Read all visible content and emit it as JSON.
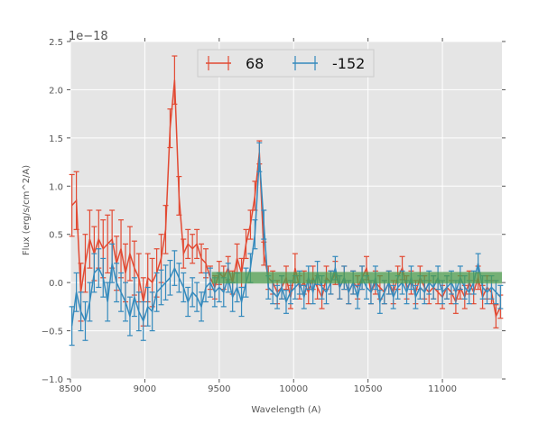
{
  "chart_data": {
    "type": "line",
    "subtype": "errorbar",
    "title": "",
    "xlabel": "Wavelength (A)",
    "ylabel": "Flux (erg/s/cm^2/A)",
    "y_offset_text": "1e−18",
    "xlim": [
      8500,
      11400
    ],
    "ylim": [
      -1.0,
      2.5
    ],
    "xticks": [
      8500,
      9000,
      9500,
      10000,
      10500,
      11000
    ],
    "xtick_labels": [
      "8500",
      "9000",
      "9500",
      "10000",
      "10500",
      "11000"
    ],
    "yticks": [
      -1.0,
      -0.5,
      0.0,
      0.5,
      1.0,
      1.5,
      2.0,
      2.5
    ],
    "ytick_labels": [
      "−1.0",
      "−0.5",
      "0.0",
      "0.5",
      "1.0",
      "1.5",
      "2.0",
      "2.5"
    ],
    "grid": true,
    "legend_position": "top-center",
    "band": {
      "x": [
        9450,
        11400
      ],
      "y": [
        -0.01,
        0.11
      ],
      "color": "#4f9e4f"
    },
    "x_start": 8510,
    "x_step": 30,
    "series": [
      {
        "name": "68",
        "color": "#E24A33",
        "y": [
          0.8,
          0.85,
          -0.1,
          0.2,
          0.45,
          0.3,
          0.45,
          0.35,
          0.4,
          0.45,
          0.2,
          0.35,
          0.1,
          0.3,
          0.15,
          0.05,
          -0.2,
          0.05,
          0.0,
          0.1,
          0.25,
          0.55,
          1.6,
          2.1,
          0.9,
          0.3,
          0.4,
          0.35,
          0.4,
          0.25,
          0.2,
          0.05,
          -0.05,
          0.1,
          0.05,
          0.15,
          0.0,
          0.25,
          0.1,
          0.4,
          0.6,
          0.9,
          1.35,
          0.3,
          0.05,
          0.0,
          -0.1,
          -0.05,
          0.05,
          -0.15,
          0.15,
          -0.05,
          0.0,
          -0.1,
          0.05,
          -0.05,
          -0.15,
          0.05,
          0.0,
          0.1,
          -0.05,
          0.05,
          -0.1,
          0.0,
          -0.05,
          0.05,
          0.15,
          -0.1,
          0.0,
          -0.05,
          -0.1,
          0.0,
          -0.1,
          0.05,
          0.15,
          -0.05,
          0.0,
          -0.1,
          0.05,
          -0.05,
          -0.1,
          -0.05,
          -0.1,
          -0.15,
          -0.05,
          -0.1,
          -0.2,
          -0.05,
          -0.15,
          0.0,
          -0.1,
          0.05,
          -0.15,
          -0.05,
          -0.1,
          -0.35,
          -0.25
        ],
        "yerr": [
          0.32,
          0.3,
          0.3,
          0.3,
          0.3,
          0.28,
          0.3,
          0.3,
          0.3,
          0.3,
          0.28,
          0.3,
          0.3,
          0.28,
          0.28,
          0.25,
          0.25,
          0.25,
          0.25,
          0.25,
          0.25,
          0.25,
          0.2,
          0.25,
          0.2,
          0.15,
          0.15,
          0.15,
          0.15,
          0.15,
          0.15,
          0.12,
          0.12,
          0.12,
          0.12,
          0.12,
          0.12,
          0.15,
          0.15,
          0.15,
          0.15,
          0.15,
          0.12,
          0.12,
          0.12,
          0.12,
          0.12,
          0.12,
          0.12,
          0.12,
          0.15,
          0.12,
          0.12,
          0.12,
          0.12,
          0.12,
          0.12,
          0.12,
          0.12,
          0.12,
          0.12,
          0.12,
          0.12,
          0.12,
          0.12,
          0.12,
          0.12,
          0.12,
          0.12,
          0.12,
          0.12,
          0.12,
          0.12,
          0.12,
          0.12,
          0.12,
          0.12,
          0.12,
          0.12,
          0.12,
          0.12,
          0.12,
          0.12,
          0.12,
          0.12,
          0.12,
          0.12,
          0.12,
          0.12,
          0.12,
          0.12,
          0.12,
          0.12,
          0.12,
          0.12,
          0.12,
          0.12
        ]
      },
      {
        "name": "-152",
        "color": "#348ABD",
        "y": [
          -0.45,
          -0.1,
          -0.3,
          -0.4,
          -0.2,
          0.1,
          0.15,
          0.05,
          -0.2,
          0.2,
          0.0,
          -0.1,
          -0.2,
          -0.35,
          -0.15,
          -0.3,
          -0.4,
          -0.25,
          -0.3,
          -0.1,
          -0.05,
          0.0,
          0.05,
          0.15,
          0.05,
          -0.05,
          -0.2,
          -0.1,
          -0.15,
          -0.25,
          -0.05,
          0.0,
          -0.1,
          -0.05,
          -0.1,
          0.05,
          -0.15,
          -0.05,
          -0.2,
          0.0,
          0.15,
          0.5,
          1.3,
          0.6,
          -0.05,
          -0.1,
          -0.15,
          -0.05,
          -0.2,
          -0.1,
          -0.05,
          0.0,
          -0.15,
          0.05,
          -0.1,
          0.1,
          -0.05,
          -0.1,
          0.0,
          0.15,
          -0.05,
          0.05,
          -0.1,
          0.0,
          -0.15,
          0.05,
          -0.05,
          -0.1,
          0.05,
          -0.2,
          -0.1,
          0.0,
          -0.15,
          -0.05,
          0.0,
          -0.1,
          0.05,
          -0.15,
          -0.05,
          -0.1,
          0.0,
          -0.05,
          0.05,
          -0.1,
          -0.05,
          0.0,
          -0.1,
          0.05,
          -0.05,
          -0.1,
          0.0,
          0.2,
          -0.05,
          -0.1,
          -0.05,
          -0.1,
          -0.15
        ],
        "yerr": [
          0.2,
          0.2,
          0.2,
          0.2,
          0.2,
          0.2,
          0.2,
          0.2,
          0.2,
          0.2,
          0.2,
          0.2,
          0.2,
          0.2,
          0.2,
          0.2,
          0.2,
          0.2,
          0.2,
          0.2,
          0.18,
          0.18,
          0.18,
          0.18,
          0.15,
          0.15,
          0.15,
          0.15,
          0.15,
          0.15,
          0.15,
          0.15,
          0.15,
          0.15,
          0.15,
          0.15,
          0.15,
          0.15,
          0.15,
          0.15,
          0.15,
          0.15,
          0.15,
          0.15,
          0.12,
          0.12,
          0.12,
          0.12,
          0.12,
          0.12,
          0.12,
          0.12,
          0.12,
          0.12,
          0.12,
          0.12,
          0.12,
          0.12,
          0.12,
          0.12,
          0.12,
          0.12,
          0.12,
          0.12,
          0.12,
          0.12,
          0.12,
          0.12,
          0.12,
          0.12,
          0.12,
          0.12,
          0.12,
          0.12,
          0.12,
          0.12,
          0.12,
          0.12,
          0.12,
          0.12,
          0.12,
          0.12,
          0.12,
          0.12,
          0.12,
          0.12,
          0.12,
          0.12,
          0.12,
          0.12,
          0.12,
          0.1,
          0.12,
          0.12,
          0.12,
          0.12,
          0.12
        ]
      }
    ]
  }
}
